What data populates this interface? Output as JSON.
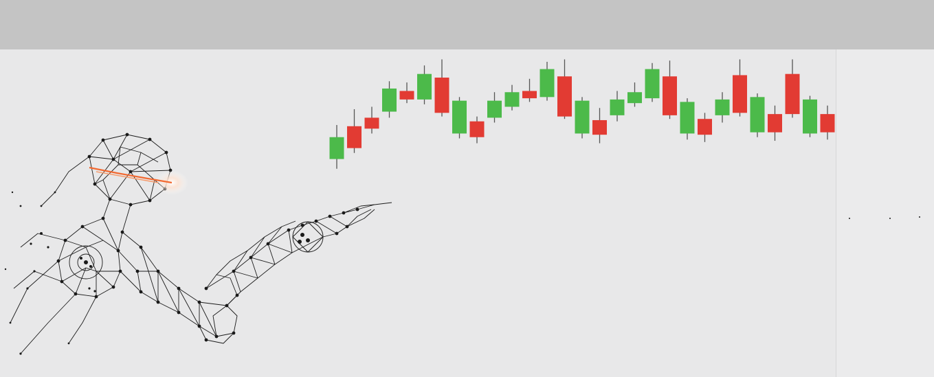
{
  "colors": {
    "top_bar": "#c4c4c4",
    "canvas": "#e8e8e9",
    "side_panel": "#ebebec",
    "up": "#4cba4a",
    "down": "#e23b33",
    "wick": "#555555",
    "wire": "#1a1a1a",
    "glow": "#f26a32"
  },
  "icons": {
    "figure": "wireframe-robot-figure-icon",
    "chart": "candlestick-chart-graphic"
  },
  "chart_data": {
    "type": "candlestick",
    "ylim": [
      0,
      100
    ],
    "candles": [
      {
        "open": 33,
        "close": 51,
        "high": 61,
        "low": 25,
        "dir": "up"
      },
      {
        "open": 60,
        "close": 42,
        "high": 74,
        "low": 38,
        "dir": "down"
      },
      {
        "open": 67,
        "close": 58,
        "high": 76,
        "low": 54,
        "dir": "down"
      },
      {
        "open": 72,
        "close": 91,
        "high": 97,
        "low": 67,
        "dir": "up"
      },
      {
        "open": 89,
        "close": 82,
        "high": 96,
        "low": 79,
        "dir": "down"
      },
      {
        "open": 82,
        "close": 103,
        "high": 110,
        "low": 78,
        "dir": "up"
      },
      {
        "open": 100,
        "close": 71,
        "high": 115,
        "low": 68,
        "dir": "down"
      },
      {
        "open": 54,
        "close": 81,
        "high": 84,
        "low": 50,
        "dir": "up"
      },
      {
        "open": 64,
        "close": 51,
        "high": 68,
        "low": 46,
        "dir": "down"
      },
      {
        "open": 67,
        "close": 81,
        "high": 88,
        "low": 63,
        "dir": "up"
      },
      {
        "open": 76,
        "close": 88,
        "high": 94,
        "low": 73,
        "dir": "up"
      },
      {
        "open": 89,
        "close": 83,
        "high": 99,
        "low": 80,
        "dir": "down"
      },
      {
        "open": 84,
        "close": 107,
        "high": 113,
        "low": 81,
        "dir": "up"
      },
      {
        "open": 101,
        "close": 68,
        "high": 115,
        "low": 66,
        "dir": "down"
      },
      {
        "open": 54,
        "close": 81,
        "high": 84,
        "low": 50,
        "dir": "up"
      },
      {
        "open": 65,
        "close": 53,
        "high": 75,
        "low": 46,
        "dir": "down"
      },
      {
        "open": 69,
        "close": 82,
        "high": 89,
        "low": 64,
        "dir": "up"
      },
      {
        "open": 79,
        "close": 88,
        "high": 96,
        "low": 76,
        "dir": "up"
      },
      {
        "open": 83,
        "close": 107,
        "high": 112,
        "low": 80,
        "dir": "up"
      },
      {
        "open": 101,
        "close": 69,
        "high": 114,
        "low": 66,
        "dir": "down"
      },
      {
        "open": 54,
        "close": 80,
        "high": 83,
        "low": 49,
        "dir": "up"
      },
      {
        "open": 66,
        "close": 53,
        "high": 71,
        "low": 47,
        "dir": "down"
      },
      {
        "open": 69,
        "close": 82,
        "high": 88,
        "low": 63,
        "dir": "up"
      },
      {
        "open": 102,
        "close": 71,
        "high": 115,
        "low": 68,
        "dir": "down"
      },
      {
        "open": 55,
        "close": 84,
        "high": 87,
        "low": 51,
        "dir": "up"
      },
      {
        "open": 70,
        "close": 55,
        "high": 77,
        "low": 48,
        "dir": "down"
      },
      {
        "open": 103,
        "close": 70,
        "high": 115,
        "low": 67,
        "dir": "down"
      },
      {
        "open": 54,
        "close": 82,
        "high": 85,
        "low": 51,
        "dir": "up"
      },
      {
        "open": 70,
        "close": 55,
        "high": 77,
        "low": 49,
        "dir": "down"
      }
    ]
  }
}
